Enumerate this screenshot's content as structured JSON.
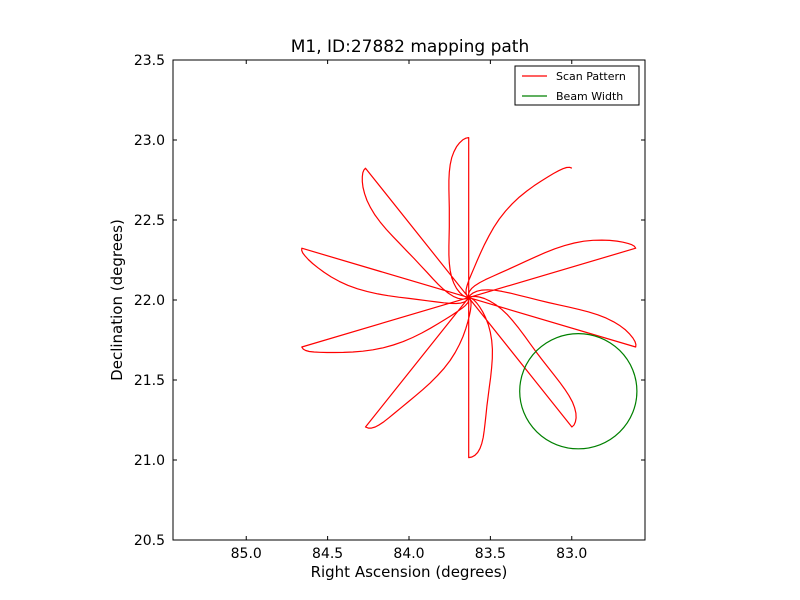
{
  "chart_data": {
    "type": "line",
    "title": "M1, ID:27882 mapping path",
    "xlabel": "Right Ascension (degrees)",
    "ylabel": "Declination (degrees)",
    "xlim": [
      85.45,
      82.55
    ],
    "ylim": [
      20.5,
      23.5
    ],
    "x_inverted": true,
    "xticks": [
      "85.0",
      "84.5",
      "84.0",
      "83.5",
      "83.0"
    ],
    "xtick_values": [
      85.0,
      84.5,
      84.0,
      83.5,
      83.0
    ],
    "yticks": [
      "20.5",
      "21.0",
      "21.5",
      "22.0",
      "22.5",
      "23.0",
      "23.5"
    ],
    "ytick_values": [
      20.5,
      21.0,
      21.5,
      22.0,
      22.5,
      23.0,
      23.5
    ],
    "grid": false,
    "legend_position": "top-right",
    "series": [
      {
        "name": "Scan Pattern",
        "color": "#ff0000",
        "kind": "scan-path",
        "center": [
          83.633,
          22.015
        ],
        "petals": 10,
        "petal_length": 1.0,
        "petal_half_width": 0.13
      },
      {
        "name": "Beam Width",
        "color": "#008000",
        "kind": "circle",
        "center": [
          82.96,
          21.43
        ],
        "radius": 0.36
      }
    ]
  }
}
